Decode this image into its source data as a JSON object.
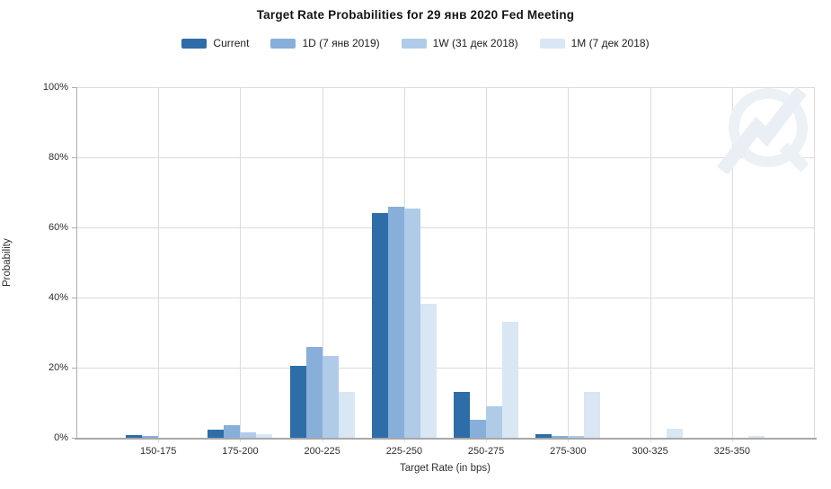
{
  "title": "Target Rate Probabilities for 29 янв 2020 Fed Meeting",
  "axes": {
    "x_title": "Target Rate (in bps)",
    "y_title": "Probability",
    "y_tick_labels": [
      "0%",
      "20%",
      "40%",
      "60%",
      "80%",
      "100%"
    ]
  },
  "colors": {
    "current": "#2E6DA8",
    "one_day": "#87AFDA",
    "one_week": "#AFCBE8",
    "one_month": "#D9E6F4",
    "gridline": "#DCDCDC",
    "axis_line": "#A8A8A8",
    "watermark": "#ECF1F5"
  },
  "watermark_icon": "quik-q-lightning-logo",
  "chart_data": {
    "type": "bar",
    "title": "Target Rate Probabilities for 29 янв 2020 Fed Meeting",
    "xlabel": "Target Rate (in bps)",
    "ylabel": "Probability",
    "ylim": [
      0,
      100
    ],
    "y_tick_step": 20,
    "grid": true,
    "legend_position": "top",
    "categories": [
      "150-175",
      "175-200",
      "200-225",
      "225-250",
      "250-275",
      "275-300",
      "300-325",
      "325-350"
    ],
    "series": [
      {
        "name": "Current",
        "color": "#2E6DA8",
        "values": [
          0.8,
          2.2,
          20.5,
          64.0,
          13.2,
          1.0,
          0,
          0
        ]
      },
      {
        "name": "1D (7 янв 2019)",
        "color": "#87AFDA",
        "values": [
          0.5,
          3.5,
          26.0,
          66.0,
          5.0,
          0.4,
          0,
          0
        ]
      },
      {
        "name": "1W (31 дек 2018)",
        "color": "#AFCBE8",
        "values": [
          0,
          1.5,
          23.3,
          65.5,
          9.0,
          0.4,
          0,
          0
        ]
      },
      {
        "name": "1M (7 дек 2018)",
        "color": "#D9E6F4",
        "values": [
          0,
          1.0,
          13.0,
          38.2,
          33.0,
          13.0,
          2.6,
          0.4
        ]
      }
    ]
  }
}
